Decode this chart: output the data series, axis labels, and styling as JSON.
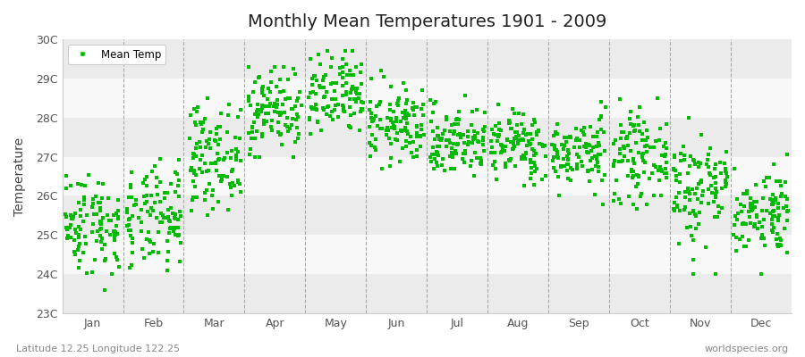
{
  "title": "Monthly Mean Temperatures 1901 - 2009",
  "ylabel": "Temperature",
  "xlabel_coords": "Latitude 12.25 Longitude 122.25",
  "watermark": "worldspecies.org",
  "ylim": [
    23,
    30
  ],
  "ytick_labels": [
    "23C",
    "24C",
    "25C",
    "26C",
    "27C",
    "28C",
    "29C",
    "30C"
  ],
  "ytick_values": [
    23,
    24,
    25,
    26,
    27,
    28,
    29,
    30
  ],
  "months": [
    "Jan",
    "Feb",
    "Mar",
    "Apr",
    "May",
    "Jun",
    "Jul",
    "Aug",
    "Sep",
    "Oct",
    "Nov",
    "Dec"
  ],
  "marker_color": "#00bb00",
  "marker_size": 7,
  "background_color": "#ffffff",
  "band_colors": [
    "#ebebeb",
    "#f8f8f8"
  ],
  "legend_label": "Mean Temp",
  "title_fontsize": 14,
  "seed": 42,
  "monthly_stats": {
    "Jan": {
      "mean": 25.3,
      "std": 0.65,
      "min": 23.2,
      "max": 27.2
    },
    "Feb": {
      "mean": 25.4,
      "std": 0.65,
      "min": 23.5,
      "max": 27.3
    },
    "Mar": {
      "mean": 27.0,
      "std": 0.65,
      "min": 25.2,
      "max": 28.5
    },
    "Apr": {
      "mean": 28.2,
      "std": 0.55,
      "min": 27.0,
      "max": 29.3
    },
    "May": {
      "mean": 28.5,
      "std": 0.55,
      "min": 26.8,
      "max": 29.7
    },
    "Jun": {
      "mean": 27.8,
      "std": 0.5,
      "min": 26.2,
      "max": 29.2
    },
    "Jul": {
      "mean": 27.4,
      "std": 0.45,
      "min": 26.1,
      "max": 28.6
    },
    "Aug": {
      "mean": 27.3,
      "std": 0.45,
      "min": 25.8,
      "max": 28.6
    },
    "Sep": {
      "mean": 27.1,
      "std": 0.45,
      "min": 25.6,
      "max": 28.4
    },
    "Oct": {
      "mean": 27.0,
      "std": 0.55,
      "min": 25.2,
      "max": 28.5
    },
    "Nov": {
      "mean": 26.2,
      "std": 0.75,
      "min": 24.0,
      "max": 28.0
    },
    "Dec": {
      "mean": 25.6,
      "std": 0.55,
      "min": 24.0,
      "max": 27.2
    }
  }
}
